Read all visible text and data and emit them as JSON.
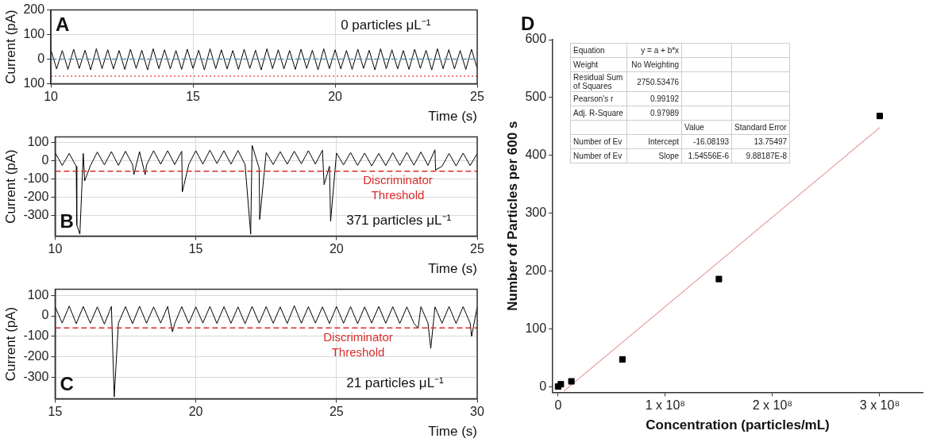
{
  "chart_data": [
    {
      "type": "line",
      "xlabel": "Time (s)",
      "ylabel": "Current (pA)",
      "xlim": [
        10,
        25
      ],
      "xticks": [
        10,
        15,
        20,
        25
      ],
      "ylim": [
        -100,
        200
      ],
      "yticks": [
        {
          "value": -100,
          "label": "100"
        },
        0,
        100,
        200
      ],
      "grid": true,
      "legend": false,
      "marker": "none",
      "annotations": [
        "A",
        "0 particles μL⁻¹"
      ],
      "ref_lines": [
        {
          "axis": "y",
          "value": 0,
          "color": "#5a8fb0",
          "line_style": "dashed"
        },
        {
          "axis": "y",
          "value": -70,
          "color": "#e05050",
          "line_style": "dotted"
        }
      ],
      "series": [
        {
          "color": "#000000",
          "x": [
            10,
            10.2,
            10.4,
            10.6,
            10.8,
            11,
            11.2,
            11.4,
            11.6,
            11.8,
            12,
            12.2,
            12.4,
            12.6,
            12.8,
            13,
            13.2,
            13.4,
            13.6,
            13.8,
            14,
            14.2,
            14.4,
            14.6,
            14.8,
            15,
            15.2,
            15.4,
            15.6,
            15.8,
            16,
            16.2,
            16.4,
            16.6,
            16.8,
            17,
            17.2,
            17.4,
            17.6,
            17.8,
            18,
            18.2,
            18.4,
            18.6,
            18.8,
            19,
            19.2,
            19.4,
            19.6,
            19.8,
            20,
            20.2,
            20.4,
            20.6,
            20.8,
            21,
            21.2,
            21.4,
            21.6,
            21.8,
            22,
            22.2,
            22.4,
            22.6,
            22.8,
            23,
            23.2,
            23.4,
            23.6,
            23.8,
            24,
            24.2,
            24.4,
            24.6,
            24.8,
            25
          ],
          "values": [
            38,
            -40,
            35,
            -42,
            40,
            -38,
            36,
            -44,
            42,
            -39,
            38,
            -40,
            35,
            -42,
            40,
            -38,
            36,
            -44,
            42,
            -39,
            38,
            -40,
            35,
            -42,
            40,
            -38,
            36,
            -44,
            42,
            -39,
            38,
            -40,
            35,
            -42,
            40,
            -38,
            36,
            -44,
            42,
            -39,
            38,
            -40,
            35,
            -42,
            40,
            -38,
            36,
            -44,
            42,
            -39,
            38,
            -40,
            35,
            -42,
            40,
            -38,
            36,
            -44,
            42,
            -39,
            38,
            -40,
            35,
            -42,
            40,
            -38,
            36,
            -44,
            42,
            -39,
            38,
            -40,
            35,
            -42,
            40,
            -38
          ]
        }
      ]
    },
    {
      "type": "line",
      "xlabel": "Time (s)",
      "ylabel": "Current (pA)",
      "xlim": [
        10,
        25
      ],
      "xticks": [
        10,
        15,
        20,
        25
      ],
      "ylim": [
        -410,
        130
      ],
      "yticks": [
        -300,
        -200,
        -100,
        0,
        100
      ],
      "grid": true,
      "legend": false,
      "marker": "none",
      "annotations": [
        "B",
        "371 particles μL⁻¹"
      ],
      "ref_lines": [
        {
          "axis": "y",
          "value": -57,
          "label": "Discriminator Threshold",
          "color": "#d92b2b",
          "line_style": "dashed"
        }
      ],
      "series": [
        {
          "color": "#000000",
          "x": [
            10,
            10.25,
            10.5,
            10.75,
            10.77,
            10.88,
            11,
            11.05,
            11.25,
            11.5,
            11.75,
            12,
            12.25,
            12.5,
            12.75,
            12.8,
            13,
            13.2,
            13.25,
            13.5,
            13.75,
            14,
            14.25,
            14.5,
            14.52,
            14.75,
            15,
            15.25,
            15.5,
            15.75,
            16,
            16.25,
            16.5,
            16.75,
            16.95,
            17,
            17.25,
            17.27,
            17.5,
            17.75,
            18,
            18.25,
            18.5,
            18.75,
            19,
            19.25,
            19.5,
            19.56,
            19.75,
            19.79,
            20,
            20.25,
            20.5,
            20.75,
            21,
            21.25,
            21.5,
            21.75,
            22,
            22.25,
            22.5,
            22.75,
            23,
            23.25,
            23.5,
            23.52,
            23.75,
            24,
            24.25,
            24.5,
            24.75,
            25
          ],
          "values": [
            45,
            -25,
            40,
            -30,
            -350,
            -400,
            40,
            -110,
            -28,
            48,
            -22,
            50,
            -25,
            52,
            -20,
            -75,
            50,
            -75,
            -22,
            55,
            -18,
            55,
            -20,
            52,
            -170,
            -20,
            55,
            -18,
            58,
            -15,
            55,
            -18,
            56,
            -20,
            -400,
            85,
            -40,
            -320,
            45,
            -20,
            50,
            -18,
            52,
            -16,
            55,
            -18,
            58,
            -130,
            -30,
            -330,
            42,
            -22,
            45,
            -25,
            42,
            -28,
            40,
            -26,
            44,
            -25,
            46,
            -24,
            48,
            -25,
            60,
            -50,
            -30,
            40,
            -28,
            42,
            -26,
            40
          ]
        }
      ]
    },
    {
      "type": "line",
      "xlabel": "Time (s)",
      "ylabel": "Current (pA)",
      "xlim": [
        15,
        30
      ],
      "xticks": [
        15,
        20,
        25,
        30
      ],
      "ylim": [
        -405,
        130
      ],
      "yticks": [
        -300,
        -200,
        -100,
        0,
        100
      ],
      "grid": true,
      "legend": false,
      "marker": "none",
      "annotations": [
        "C",
        "21 particles μL⁻¹"
      ],
      "ref_lines": [
        {
          "axis": "y",
          "value": -59,
          "label": "Discriminator Threshold",
          "color": "#d92b2b",
          "line_style": "dashed"
        }
      ],
      "series": [
        {
          "color": "#000000",
          "x": [
            15,
            15.25,
            15.5,
            15.75,
            16,
            16.25,
            16.5,
            16.75,
            17,
            17.1,
            17.25,
            17.5,
            17.75,
            18,
            18.25,
            18.5,
            18.75,
            19,
            19.17,
            19.25,
            19.5,
            19.75,
            20,
            20.25,
            20.5,
            20.75,
            21,
            21.25,
            21.5,
            21.75,
            22,
            22.25,
            22.5,
            22.75,
            23,
            23.25,
            23.5,
            23.75,
            24,
            24.25,
            24.5,
            24.75,
            25,
            25.25,
            25.5,
            25.75,
            26,
            26.25,
            26.5,
            26.75,
            27,
            27.25,
            27.5,
            27.75,
            27.9,
            28,
            28.25,
            28.35,
            28.5,
            28.75,
            29,
            29.25,
            29.5,
            29.75,
            29.8,
            30
          ],
          "values": [
            45,
            -35,
            48,
            -38,
            46,
            -36,
            44,
            -40,
            46,
            -396,
            -35,
            45,
            -38,
            47,
            -36,
            44,
            -35,
            46,
            -78,
            -38,
            45,
            -36,
            44,
            -35,
            46,
            -37,
            45,
            -36,
            44,
            -38,
            46,
            -35,
            45,
            -36,
            44,
            -37,
            50,
            -36,
            45,
            -35,
            44,
            -37,
            46,
            -36,
            45,
            -38,
            44,
            -35,
            46,
            -36,
            45,
            -37,
            44,
            -36,
            -60,
            45,
            -35,
            -159,
            44,
            -36,
            46,
            -37,
            45,
            -36,
            -100,
            44
          ]
        }
      ]
    },
    {
      "type": "scatter",
      "xlabel": "Concentration (particles/mL)",
      "ylabel": "Number of Particles per 600 s",
      "xlim": [
        -5000000,
        340000000
      ],
      "xticks": [
        0,
        {
          "value": 100000000,
          "label": "1 x 10⁸"
        },
        {
          "value": 200000000,
          "label": "2 x 10⁸"
        },
        {
          "value": 300000000,
          "label": "3 x 10⁸"
        }
      ],
      "ylim": [
        -10,
        600
      ],
      "yticks": [
        0,
        100,
        200,
        300,
        400,
        500,
        600
      ],
      "grid": false,
      "legend": false,
      "marker": "square",
      "annotations": [
        "D",
        "Equation",
        "y = a + b*x",
        "Weight",
        "No Weighting",
        "Residual Sum of Squares",
        "2750.53476",
        "Pearson's r",
        "0.99192",
        "Adj. R-Square",
        "0.97989",
        "Value",
        "Standard Error",
        "Number of Ev",
        "Intercept",
        "-16.08193",
        "13.75497",
        "Number of Ev",
        "Slope",
        "1.54556E-6",
        "9.88187E-8"
      ],
      "series": [
        {
          "type": "scatter",
          "color": "#000000",
          "x": [
            0,
            2600000,
            12400000,
            60000000,
            150000000,
            300000000
          ],
          "values": [
            0,
            4,
            9,
            47,
            186,
            468
          ]
        },
        {
          "type": "line",
          "marker": "none",
          "color": "#e07070",
          "x": [
            5400000,
            300000000
          ],
          "values": [
            -8,
            448
          ]
        }
      ]
    }
  ]
}
